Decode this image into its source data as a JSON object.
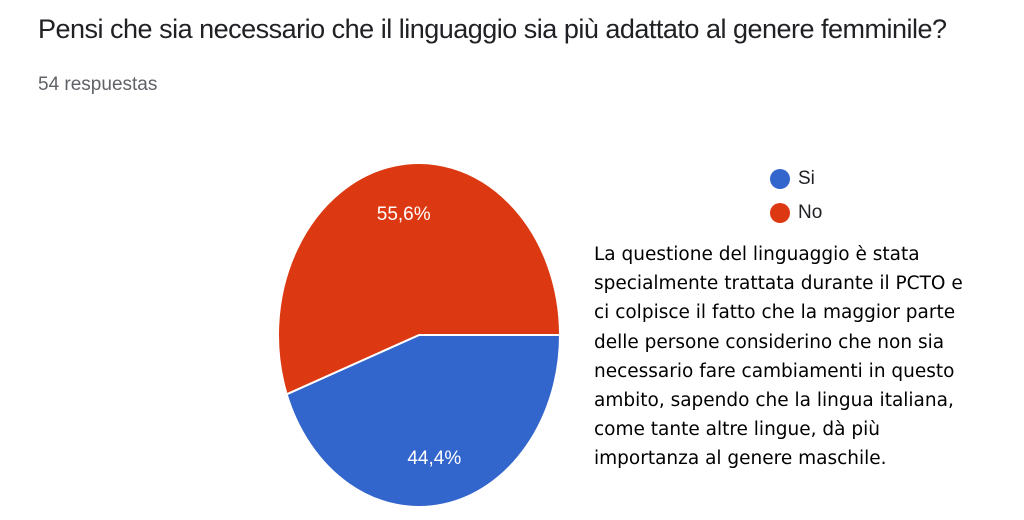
{
  "question": "Pensi che sia necessario che il linguaggio sia più adattato al genere femminile?",
  "responses": "54 respuestas",
  "chart_data": {
    "type": "pie",
    "title": "Pensi che sia necessario che il linguaggio sia più adattato al genere femminile?",
    "slices": [
      {
        "name": "Si",
        "value": 44.4,
        "label": "44,4%",
        "color": "#3366cc"
      },
      {
        "name": "No",
        "value": 55.6,
        "label": "55,6%",
        "color": "#dc3912"
      }
    ],
    "legend": {
      "position": "right",
      "items": [
        "Si",
        "No"
      ]
    }
  },
  "legend": {
    "items": [
      {
        "label": "Si",
        "color": "#3366cc"
      },
      {
        "label": "No",
        "color": "#dc3912"
      }
    ]
  },
  "note": "La questione del linguaggio è stata specialmente trattata durante il PCTO e ci colpisce il fatto che la maggior parte delle persone considerino che non sia necessario fare cambiamenti in questo ambito, sapendo che la lingua italiana, come tante altre lingue, dà più importanza al genere maschile."
}
